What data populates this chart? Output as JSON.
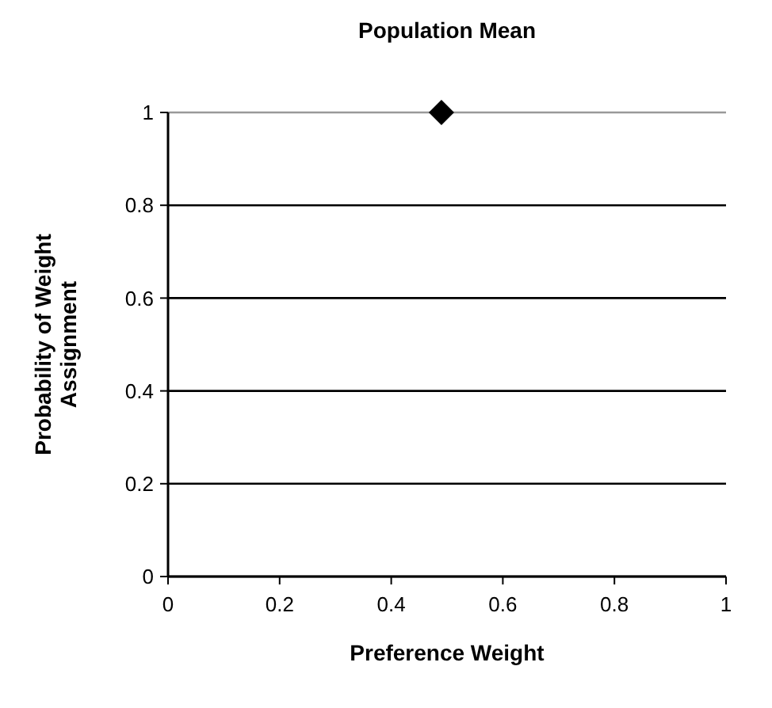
{
  "chart_data": {
    "type": "scatter",
    "title": "Population Mean",
    "xlabel": "Preference Weight",
    "ylabel": "Probability of Weight Assignment",
    "x": [
      0.49
    ],
    "series": [
      {
        "color": "#000000",
        "values": [
          1
        ]
      }
    ],
    "xlim": [
      0,
      1
    ],
    "xticks": [
      0,
      0.2,
      0.4,
      0.6,
      0.8,
      1
    ],
    "ylim": [
      0,
      1
    ],
    "yticks": [
      0,
      0.2,
      0.4,
      0.6,
      0.8,
      1
    ],
    "grid": "y",
    "marker": "diamond"
  }
}
